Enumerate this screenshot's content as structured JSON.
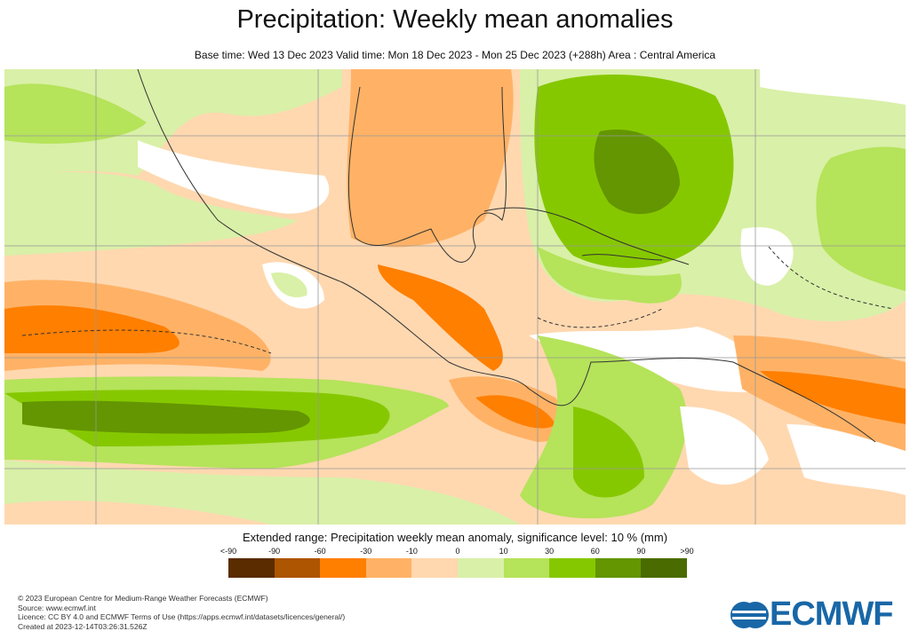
{
  "header": {
    "title": "Precipitation: Weekly mean anomalies",
    "subtitle": "Base time: Wed 13 Dec 2023 Valid time: Mon 18 Dec 2023 - Mon 25 Dec 2023 (+288h) Area : Central America"
  },
  "legend": {
    "title": "Extended range: Precipitation weekly mean anomaly, significance level: 10 % (mm)",
    "ticks": [
      "<-90",
      "-90",
      "-60",
      "-30",
      "-10",
      "0",
      "10",
      "30",
      "60",
      "90",
      ">90"
    ],
    "colors": [
      "#5a2c00",
      "#ad5500",
      "#ff7f00",
      "#ffb266",
      "#ffd8b0",
      "#d9f0a8",
      "#b5e35a",
      "#86c800",
      "#639600",
      "#4a6b00"
    ]
  },
  "footer": {
    "line1": "© 2023 European Centre for Medium-Range Weather Forecasts (ECMWF)",
    "line2": "Source: www.ecmwf.int",
    "line3": "Licence: CC BY 4.0 and ECMWF Terms of Use (https://apps.ecmwf.int/datasets/licences/general/)",
    "line4": "Created at 2023-12-14T03:26:31.526Z"
  },
  "logo": {
    "text": "ECMWF"
  }
}
